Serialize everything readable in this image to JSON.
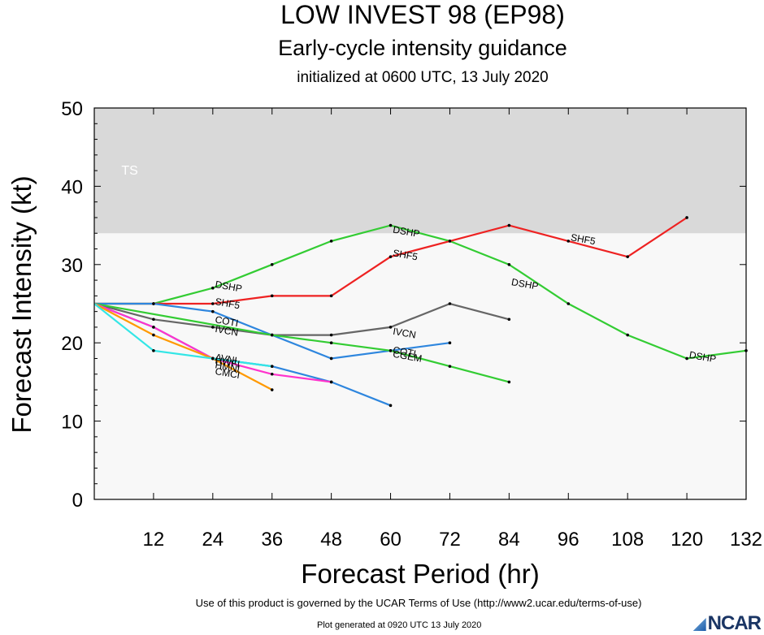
{
  "header": {
    "title": "LOW INVEST 98 (EP98)",
    "subtitle": "Early-cycle intensity guidance",
    "init": "initialized at 0600 UTC, 13 July 2020"
  },
  "footer": {
    "terms": "Use of this product is governed by the UCAR Terms of Use (http://www2.ucar.edu/terms-of-use)",
    "generated": "Plot generated at 0920 UTC   13 July 2020",
    "logo": "NCAR"
  },
  "chart_data": {
    "type": "line",
    "xlabel": "Forecast Period (hr)",
    "ylabel": "Forecast Intensity (kt)",
    "xlim": [
      0,
      132
    ],
    "ylim": [
      0,
      50
    ],
    "xticks": [
      12,
      24,
      36,
      48,
      60,
      72,
      84,
      96,
      108,
      120,
      132
    ],
    "yticks": [
      0,
      10,
      20,
      30,
      40,
      50
    ],
    "band": {
      "label": "TS",
      "from": 34,
      "to": 50,
      "color": "#d9d9d9"
    },
    "plot_background": "#f8f8f8",
    "series": [
      {
        "name": "DSHP",
        "color": "#33cc33",
        "label_at": [
          [
            24,
            27.5
          ],
          [
            60,
            34.5
          ],
          [
            84,
            27.8
          ],
          [
            120,
            18.5
          ]
        ],
        "x": [
          0,
          12,
          24,
          36,
          48,
          60,
          72,
          84,
          96,
          108,
          120,
          132
        ],
        "y": [
          25,
          25,
          27,
          30,
          33,
          35,
          33,
          30,
          25,
          21,
          18,
          19
        ]
      },
      {
        "name": "SHF5",
        "color": "#ee2222",
        "label_at": [
          [
            24,
            25.3
          ],
          [
            60,
            31.5
          ],
          [
            96,
            33.5
          ]
        ],
        "x": [
          0,
          12,
          24,
          36,
          48,
          60,
          72,
          84,
          96,
          108,
          120
        ],
        "y": [
          25,
          25,
          25,
          26,
          26,
          31,
          33,
          35,
          33,
          31,
          36
        ]
      },
      {
        "name": "IVCN",
        "color": "#666666",
        "label_at": [
          [
            24,
            21.8
          ],
          [
            60,
            21.5
          ]
        ],
        "x": [
          0,
          12,
          24,
          36,
          48,
          60,
          72,
          84
        ],
        "y": [
          25,
          23,
          22,
          21,
          21,
          22,
          25,
          23
        ]
      },
      {
        "name": "COTI",
        "color": "#2e86de",
        "label_at": [
          [
            24,
            23
          ],
          [
            60,
            19.1
          ]
        ],
        "x": [
          0,
          12,
          24,
          36,
          48,
          60,
          72
        ],
        "y": [
          25,
          25,
          24,
          21,
          18,
          19,
          20
        ]
      },
      {
        "name": "CGEM",
        "color": "#33cc33",
        "label_at": [
          [
            60,
            18.6
          ]
        ],
        "x": [
          0,
          36,
          48,
          60,
          72,
          84
        ],
        "y": [
          25,
          21,
          20,
          19,
          17,
          15
        ]
      },
      {
        "name": "HWFI",
        "color": "#2e86de",
        "label_at": [
          [
            24,
            17.8
          ]
        ],
        "x": [
          0,
          12,
          24,
          36,
          48,
          60
        ],
        "y": [
          25,
          22,
          18,
          17,
          15,
          12
        ]
      },
      {
        "name": "HMNI",
        "color": "#ff33cc",
        "label_at": [
          [
            24,
            17.2
          ]
        ],
        "x": [
          0,
          12,
          24,
          36,
          48
        ],
        "y": [
          25,
          22,
          18,
          16,
          15
        ]
      },
      {
        "name": "CMCI",
        "color": "#ff9900",
        "label_at": [
          [
            24,
            16.4
          ]
        ],
        "x": [
          0,
          12,
          24,
          36
        ],
        "y": [
          25,
          21,
          18,
          14
        ]
      },
      {
        "name": "AVNI",
        "color": "#33e6e6",
        "label_at": [
          [
            24,
            18.2
          ]
        ],
        "x": [
          0,
          12,
          24,
          36
        ],
        "y": [
          25,
          19,
          18,
          17
        ]
      }
    ]
  }
}
